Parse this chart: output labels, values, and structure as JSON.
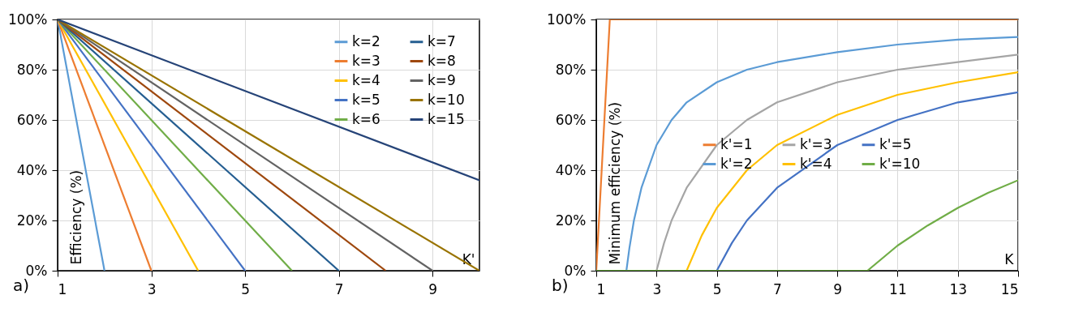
{
  "chart_data": [
    {
      "type": "line",
      "xlabel": "K'",
      "ylabel": "Efficiency (%)",
      "annotations": [
        "a)"
      ],
      "xlim": [
        1,
        10
      ],
      "xticks": [
        1,
        3,
        5,
        7,
        9
      ],
      "ylim": [
        0,
        100
      ],
      "yticks": [
        {
          "value": 0,
          "label": "0%"
        },
        {
          "value": 20,
          "label": "20%"
        },
        {
          "value": 40,
          "label": "40%"
        },
        {
          "value": 60,
          "label": "60%"
        },
        {
          "value": 80,
          "label": "80%"
        },
        {
          "value": 100,
          "label": "100%"
        }
      ],
      "grid": true,
      "legend": "top right",
      "series": [
        {
          "name": "k=2",
          "color": "#5b9bd5",
          "x": [
            1,
            2
          ],
          "values": [
            100,
            0
          ]
        },
        {
          "name": "k=3",
          "color": "#ed7d31",
          "x": [
            1,
            3
          ],
          "values": [
            100,
            0
          ]
        },
        {
          "name": "k=4",
          "color": "#ffc000",
          "x": [
            1,
            4
          ],
          "values": [
            100,
            0
          ]
        },
        {
          "name": "k=5",
          "color": "#4472c4",
          "x": [
            1,
            5
          ],
          "values": [
            100,
            0
          ]
        },
        {
          "name": "k=6",
          "color": "#70ad47",
          "x": [
            1,
            6
          ],
          "values": [
            100,
            0
          ]
        },
        {
          "name": "k=7",
          "color": "#255e91",
          "x": [
            1,
            7
          ],
          "values": [
            100,
            0
          ]
        },
        {
          "name": "k=8",
          "color": "#9e480e",
          "x": [
            1,
            8
          ],
          "values": [
            100,
            0
          ]
        },
        {
          "name": "k=9",
          "color": "#636363",
          "x": [
            1,
            9
          ],
          "values": [
            100,
            0
          ]
        },
        {
          "name": "k=10",
          "color": "#997300",
          "x": [
            1,
            10
          ],
          "values": [
            100,
            0
          ]
        },
        {
          "name": "k=15",
          "color": "#264478",
          "x": [
            1,
            10
          ],
          "values": [
            100,
            36
          ]
        }
      ]
    },
    {
      "type": "line",
      "xlabel": "K",
      "ylabel": "Minimum efficiency (%)",
      "annotations": [
        "b)"
      ],
      "xlim": [
        1,
        15
      ],
      "xticks": [
        1,
        3,
        5,
        7,
        9,
        11,
        13,
        15
      ],
      "ylim": [
        0,
        100
      ],
      "yticks": [
        {
          "value": 0,
          "label": "0%"
        },
        {
          "value": 20,
          "label": "20%"
        },
        {
          "value": 40,
          "label": "40%"
        },
        {
          "value": 60,
          "label": "60%"
        },
        {
          "value": 80,
          "label": "80%"
        },
        {
          "value": 100,
          "label": "100%"
        }
      ],
      "grid": true,
      "legend": "right",
      "series": [
        {
          "name": "k'=1",
          "color": "#ed7d31",
          "x": [
            1,
            1.45,
            15
          ],
          "values": [
            0,
            100,
            100
          ]
        },
        {
          "name": "k'=2",
          "color": "#5b9bd5",
          "x": [
            2,
            2.1,
            2.25,
            2.5,
            3,
            3.5,
            4,
            5,
            6,
            7,
            9,
            11,
            13,
            15
          ],
          "values": [
            0,
            9,
            20,
            33,
            50,
            60,
            67,
            75,
            80,
            83,
            87,
            90,
            92,
            93
          ]
        },
        {
          "name": "k'=3",
          "color": "#a5a5a5",
          "x": [
            3,
            3.25,
            3.5,
            4,
            5,
            6,
            7,
            9,
            11,
            13,
            15
          ],
          "values": [
            0,
            11,
            20,
            33,
            50,
            60,
            67,
            75,
            80,
            83,
            86
          ]
        },
        {
          "name": "k'=4",
          "color": "#ffc000",
          "x": [
            4,
            4.5,
            5,
            6,
            7,
            9,
            11,
            13,
            15
          ],
          "values": [
            0,
            14,
            25,
            40,
            50,
            62,
            70,
            75,
            79
          ]
        },
        {
          "name": "k'=5",
          "color": "#4472c4",
          "x": [
            5,
            5.5,
            6,
            7,
            9,
            11,
            13,
            15
          ],
          "values": [
            0,
            11,
            20,
            33,
            50,
            60,
            67,
            71
          ]
        },
        {
          "name": "k'=10",
          "color": "#70ad47",
          "x": [
            1,
            10,
            11,
            12,
            13,
            14,
            15
          ],
          "values": [
            0,
            0,
            10,
            18,
            25,
            31,
            36
          ]
        }
      ]
    }
  ]
}
